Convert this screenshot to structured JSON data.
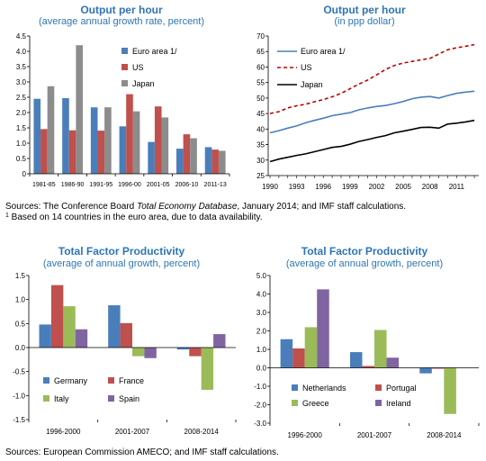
{
  "colors": {
    "blue": "#4a7ebb",
    "red": "#c0504d",
    "gray": "#8c8c8c",
    "green": "#9bbb59",
    "purple": "#8064a2",
    "title": "#2e75b6",
    "black": "#000000"
  },
  "notes": {
    "top_line1_pre": "Sources: The Conference Board ",
    "top_line1_italic": "Total Economy Database",
    "top_line1_post": ", January 2014; and IMF staff calculations.",
    "top_line2_mark": "1",
    "top_line2_text": " Based on 14 countries in the euro area, due to data availability.",
    "bottom": "Sources: European Commission AMECO; and IMF staff calculations."
  },
  "chart_data": [
    {
      "type": "bar",
      "title": "Output per hour",
      "subtitle": "(average annual growth rate, percent)",
      "categories": [
        "1981-85",
        "1986-90",
        "1991-95",
        "1996-00",
        "2001-05",
        "2006-10",
        "2011-13"
      ],
      "ylim": [
        0,
        4.5
      ],
      "yticks": [
        "0",
        "0.5",
        "1.0",
        "1.5",
        "2.0",
        "2.5",
        "3.0",
        "3.5",
        "4.0",
        "4.5"
      ],
      "legend_position": "top-right",
      "series": [
        {
          "name": "Euro area 1/",
          "color": "#4a7ebb",
          "values": [
            2.45,
            2.47,
            2.17,
            1.55,
            1.04,
            0.82,
            0.87
          ]
        },
        {
          "name": "US",
          "color": "#c0504d",
          "values": [
            1.46,
            1.42,
            1.41,
            2.6,
            2.2,
            1.29,
            0.79
          ]
        },
        {
          "name": "Japan",
          "color": "#8c8c8c",
          "values": [
            2.86,
            4.2,
            2.17,
            2.04,
            1.84,
            1.16,
            0.75
          ]
        }
      ]
    },
    {
      "type": "line",
      "title": "Output per hour",
      "subtitle": "(in ppp dollar)",
      "x": [
        1990,
        1991,
        1992,
        1993,
        1994,
        1995,
        1996,
        1997,
        1998,
        1999,
        2000,
        2001,
        2002,
        2003,
        2004,
        2005,
        2006,
        2007,
        2008,
        2009,
        2010,
        2011,
        2012,
        2013
      ],
      "xticks": [
        "1990",
        "1993",
        "1996",
        "1999",
        "2002",
        "2005",
        "2008",
        "2011"
      ],
      "ylim": [
        25,
        70
      ],
      "yticks": [
        "25",
        "30",
        "35",
        "40",
        "45",
        "50",
        "55",
        "60",
        "65",
        "70"
      ],
      "legend_position": "top-left",
      "series": [
        {
          "name": "Euro area 1/",
          "color": "#4a7ebb",
          "dash": "solid",
          "values": [
            38.8,
            39.5,
            40.3,
            41.0,
            42.0,
            42.8,
            43.5,
            44.3,
            44.8,
            45.3,
            46.2,
            46.8,
            47.3,
            47.6,
            48.2,
            48.9,
            49.8,
            50.3,
            50.5,
            50.0,
            50.8,
            51.5,
            51.9,
            52.2
          ]
        },
        {
          "name": "US",
          "color": "#c00000",
          "dash": "dashed",
          "values": [
            45.0,
            45.6,
            46.8,
            47.5,
            48.0,
            48.8,
            49.5,
            50.4,
            51.5,
            53.0,
            54.5,
            55.8,
            57.5,
            59.2,
            60.5,
            61.3,
            61.8,
            62.3,
            62.8,
            64.2,
            65.6,
            66.2,
            66.7,
            67.2
          ]
        },
        {
          "name": "Japan",
          "color": "#000000",
          "dash": "solid",
          "values": [
            29.5,
            30.3,
            30.9,
            31.5,
            32.0,
            32.7,
            33.4,
            34.1,
            34.4,
            35.1,
            36.0,
            36.6,
            37.3,
            37.9,
            38.8,
            39.3,
            39.9,
            40.5,
            40.6,
            40.3,
            41.6,
            41.9,
            42.3,
            42.8
          ]
        }
      ]
    },
    {
      "type": "bar",
      "title": "Total Factor Productivity",
      "subtitle": "(average of annual growth, percent)",
      "categories": [
        "1996-2000",
        "2001-2007",
        "2008-2014"
      ],
      "ylim": [
        -1.5,
        1.5
      ],
      "yticks": [
        "-1.5",
        "-1.0",
        "-0.5",
        "0.0",
        "0.5",
        "1.0",
        "1.5"
      ],
      "legend_position": "bottom-left",
      "series": [
        {
          "name": "Germany",
          "color": "#4a7ebb",
          "values": [
            0.48,
            0.88,
            -0.04
          ]
        },
        {
          "name": "France",
          "color": "#c0504d",
          "values": [
            1.3,
            0.51,
            -0.18
          ]
        },
        {
          "name": "Italy",
          "color": "#9bbb59",
          "values": [
            0.86,
            -0.18,
            -0.88
          ]
        },
        {
          "name": "Spain",
          "color": "#8064a2",
          "values": [
            0.38,
            -0.22,
            0.28
          ]
        }
      ]
    },
    {
      "type": "bar",
      "title": "Total Factor Productivity",
      "subtitle": "(average of annual growth, percent)",
      "categories": [
        "1996-2000",
        "2001-2007",
        "2008-2014"
      ],
      "ylim": [
        -3.0,
        5.0
      ],
      "yticks": [
        "-3.0",
        "-2.0",
        "-1.0",
        "0.0",
        "1.0",
        "2.0",
        "3.0",
        "4.0",
        "5.0"
      ],
      "legend_position": "bottom-left",
      "series": [
        {
          "name": "Netherlands",
          "color": "#4a7ebb",
          "values": [
            1.55,
            0.85,
            -0.3
          ]
        },
        {
          "name": "Portugal",
          "color": "#c0504d",
          "values": [
            1.05,
            0.1,
            -0.05
          ]
        },
        {
          "name": "Greece",
          "color": "#9bbb59",
          "values": [
            2.2,
            2.05,
            -2.5
          ]
        },
        {
          "name": "Ireland",
          "color": "#8064a2",
          "values": [
            4.25,
            0.55,
            0.0
          ]
        }
      ]
    }
  ]
}
